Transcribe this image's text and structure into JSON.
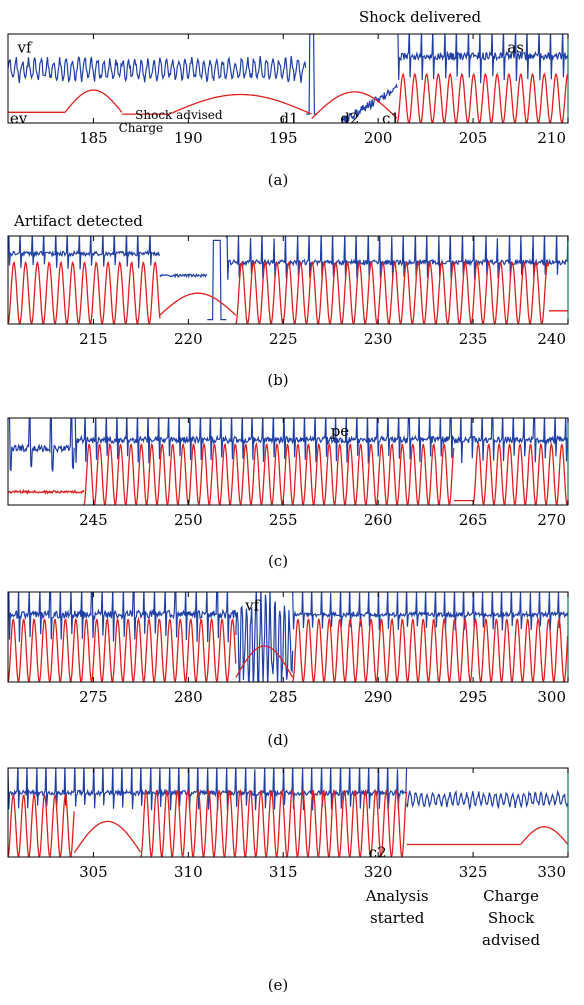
{
  "colors": {
    "ecg": "#1f3fa6",
    "impedance": "#e01f1f",
    "axis": "#000000",
    "right_edge": "#1a7a4a"
  },
  "chart_data": [
    {
      "type": "line",
      "panel": "a",
      "caption": "(a)",
      "title": "Shock delivered",
      "xlim": [
        180.5,
        210
      ],
      "ticks": [
        185,
        190,
        195,
        200,
        205,
        210
      ],
      "tick_labels": [
        "185",
        "190",
        "195",
        "200",
        "205",
        "210"
      ],
      "series": [
        {
          "name": "",
          "color": "ecg",
          "segments": [
            {
              "x_start": 180.5,
              "x_end": 196.2,
              "pattern": "vf",
              "level": 0.6,
              "amp": 0.13,
              "period": 0.33
            },
            {
              "x_start": 196.2,
              "x_end": 196.8,
              "pattern": "spike",
              "level": 1.0,
              "amp": 0.0
            },
            {
              "x_start": 198.0,
              "x_end": 201.0,
              "pattern": "ramp",
              "level": 0.0,
              "level_end": 0.4,
              "amp": 0.1
            },
            {
              "x_start": 201.0,
              "x_end": 210.0,
              "pattern": "spikes",
              "level": 0.75,
              "amp": 0.35,
              "period": 0.62
            }
          ]
        },
        {
          "name": "",
          "color": "impedance",
          "segments": [
            {
              "x_start": 180.5,
              "x_end": 183.5,
              "pattern": "flat",
              "level": 0.12,
              "amp": 0.0
            },
            {
              "x_start": 183.5,
              "x_end": 186.5,
              "pattern": "hump",
              "level": 0.12,
              "amp": 0.25
            },
            {
              "x_start": 186.5,
              "x_end": 189.0,
              "pattern": "flat",
              "level": 0.1,
              "amp": 0.0
            },
            {
              "x_start": 189.0,
              "x_end": 196.5,
              "pattern": "hump",
              "level": 0.1,
              "amp": 0.22
            },
            {
              "x_start": 196.5,
              "x_end": 201.0,
              "pattern": "hump",
              "level": 0.05,
              "amp": 0.3
            },
            {
              "x_start": 201.0,
              "x_end": 210.0,
              "pattern": "pulse",
              "level": 0.0,
              "amp": 0.55,
              "period": 0.62
            }
          ]
        }
      ],
      "annotations": [
        {
          "text": "vf",
          "x": 181.0,
          "y": 0.85
        },
        {
          "text": "as",
          "x": 206.8,
          "y": 0.85
        },
        {
          "text": "ev",
          "x": 180.6,
          "y": 0.05
        },
        {
          "text": "d1",
          "x": 194.8,
          "y": 0.05
        },
        {
          "text": "d2",
          "x": 198.0,
          "y": 0.05
        },
        {
          "text": "c1",
          "x": 200.2,
          "y": 0.05
        }
      ],
      "below_annotations": [
        {
          "text": "Shock advised",
          "x": 189.5,
          "line": 0
        },
        {
          "text": "Charge",
          "x": 187.5,
          "line": 1
        }
      ]
    },
    {
      "type": "line",
      "panel": "b",
      "caption": "(b)",
      "title": "Artifact detected",
      "xlim": [
        210.5,
        240
      ],
      "ticks": [
        215,
        220,
        225,
        230,
        235,
        240
      ],
      "tick_labels": [
        "215",
        "220",
        "225",
        "230",
        "235",
        "240"
      ],
      "series": [
        {
          "name": "",
          "color": "ecg",
          "segments": [
            {
              "x_start": 210.5,
              "x_end": 218.5,
              "pattern": "spikes",
              "level": 0.8,
              "amp": 0.2,
              "period": 0.62
            },
            {
              "x_start": 218.5,
              "x_end": 221.0,
              "pattern": "flat",
              "level": 0.55,
              "amp": 0.03
            },
            {
              "x_start": 221.0,
              "x_end": 222.0,
              "pattern": "spike",
              "level": 0.95,
              "amp": 0.0
            },
            {
              "x_start": 222.0,
              "x_end": 240.0,
              "pattern": "spikes",
              "level": 0.7,
              "amp": 0.22,
              "period": 0.62
            }
          ]
        },
        {
          "name": "",
          "color": "impedance",
          "segments": [
            {
              "x_start": 210.5,
              "x_end": 218.5,
              "pattern": "pulse",
              "level": 0.0,
              "amp": 0.7,
              "period": 0.62
            },
            {
              "x_start": 218.5,
              "x_end": 222.5,
              "pattern": "hump",
              "level": 0.1,
              "amp": 0.25
            },
            {
              "x_start": 222.5,
              "x_end": 239.0,
              "pattern": "pulse",
              "level": 0.0,
              "amp": 0.7,
              "period": 0.62
            },
            {
              "x_start": 239.0,
              "x_end": 240.0,
              "pattern": "flat",
              "level": 0.15,
              "amp": 0.0
            }
          ]
        }
      ],
      "annotations": [],
      "below_annotations": []
    },
    {
      "type": "line",
      "panel": "c",
      "caption": "(c)",
      "title": "",
      "xlim": [
        240.5,
        270
      ],
      "ticks": [
        245,
        250,
        255,
        260,
        265,
        270
      ],
      "tick_labels": [
        "245",
        "250",
        "255",
        "260",
        "265",
        "270"
      ],
      "series": [
        {
          "name": "",
          "color": "ecg",
          "segments": [
            {
              "x_start": 240.5,
              "x_end": 244.0,
              "pattern": "spikes",
              "level": 0.65,
              "amp": 0.3,
              "period": 1.1
            },
            {
              "x_start": 244.0,
              "x_end": 270.0,
              "pattern": "spikes",
              "level": 0.75,
              "amp": 0.3,
              "period": 0.55
            }
          ]
        },
        {
          "name": "",
          "color": "impedance",
          "segments": [
            {
              "x_start": 240.5,
              "x_end": 244.5,
              "pattern": "flat",
              "level": 0.15,
              "amp": 0.03
            },
            {
              "x_start": 244.5,
              "x_end": 264.0,
              "pattern": "pulse",
              "level": 0.0,
              "amp": 0.7,
              "period": 0.55
            },
            {
              "x_start": 264.0,
              "x_end": 265.0,
              "pattern": "flat",
              "level": 0.05,
              "amp": 0.0
            },
            {
              "x_start": 265.0,
              "x_end": 270.0,
              "pattern": "pulse",
              "level": 0.0,
              "amp": 0.7,
              "period": 0.55
            }
          ]
        }
      ],
      "annotations": [
        {
          "text": "pe",
          "x": 257.5,
          "y": 0.85
        }
      ],
      "below_annotations": []
    },
    {
      "type": "line",
      "panel": "d",
      "caption": "(d)",
      "title": "",
      "xlim": [
        270.5,
        300
      ],
      "ticks": [
        275,
        280,
        285,
        290,
        295,
        300
      ],
      "tick_labels": [
        "275",
        "280",
        "285",
        "290",
        "295",
        "300"
      ],
      "series": [
        {
          "name": "",
          "color": "ecg",
          "segments": [
            {
              "x_start": 270.5,
              "x_end": 282.5,
              "pattern": "spikes",
              "level": 0.75,
              "amp": 0.35,
              "period": 0.55
            },
            {
              "x_start": 282.5,
              "x_end": 285.5,
              "pattern": "vf",
              "level": 0.45,
              "amp": 0.55,
              "period": 0.25
            },
            {
              "x_start": 285.5,
              "x_end": 300.0,
              "pattern": "spikes",
              "level": 0.75,
              "amp": 0.2,
              "period": 0.5
            }
          ]
        },
        {
          "name": "",
          "color": "impedance",
          "segments": [
            {
              "x_start": 270.5,
              "x_end": 282.5,
              "pattern": "pulse",
              "level": 0.0,
              "amp": 0.7,
              "period": 0.55
            },
            {
              "x_start": 282.5,
              "x_end": 285.5,
              "pattern": "hump",
              "level": 0.05,
              "amp": 0.35
            },
            {
              "x_start": 285.5,
              "x_end": 300.0,
              "pattern": "pulse",
              "level": 0.0,
              "amp": 0.7,
              "period": 0.55
            }
          ]
        }
      ],
      "annotations": [
        {
          "text": "vf",
          "x": 283.0,
          "y": 0.85
        }
      ],
      "below_annotations": []
    },
    {
      "type": "line",
      "panel": "e",
      "caption": "(e)",
      "title": "",
      "xlim": [
        300.5,
        330
      ],
      "ticks": [
        305,
        310,
        315,
        320,
        325,
        330
      ],
      "tick_labels": [
        "305",
        "310",
        "315",
        "320",
        "325",
        "330"
      ],
      "series": [
        {
          "name": "",
          "color": "ecg",
          "segments": [
            {
              "x_start": 300.5,
              "x_end": 321.5,
              "pattern": "spikes",
              "level": 0.72,
              "amp": 0.22,
              "period": 0.5
            },
            {
              "x_start": 321.5,
              "x_end": 330.0,
              "pattern": "vf",
              "level": 0.65,
              "amp": 0.08,
              "period": 0.3
            }
          ]
        },
        {
          "name": "",
          "color": "impedance",
          "segments": [
            {
              "x_start": 300.5,
              "x_end": 304.0,
              "pattern": "pulse",
              "level": 0.0,
              "amp": 0.7,
              "period": 0.55
            },
            {
              "x_start": 304.0,
              "x_end": 307.5,
              "pattern": "hump",
              "level": 0.05,
              "amp": 0.35
            },
            {
              "x_start": 307.5,
              "x_end": 321.5,
              "pattern": "pulse",
              "level": 0.0,
              "amp": 0.75,
              "period": 0.55
            },
            {
              "x_start": 321.5,
              "x_end": 327.5,
              "pattern": "flat",
              "level": 0.14,
              "amp": 0.0
            },
            {
              "x_start": 327.5,
              "x_end": 330.0,
              "pattern": "hump",
              "level": 0.14,
              "amp": 0.2
            }
          ]
        }
      ],
      "annotations": [
        {
          "text": "c2",
          "x": 319.5,
          "y": 0.05
        }
      ],
      "below_annotations": [
        {
          "text": "Analysis",
          "x": 321.0,
          "line": 0
        },
        {
          "text": "started",
          "x": 321.0,
          "line": 1
        },
        {
          "text": "Charge",
          "x": 327.0,
          "line": 0
        },
        {
          "text": "Shock",
          "x": 327.0,
          "line": 1
        },
        {
          "text": "advised",
          "x": 327.0,
          "line": 2
        }
      ]
    }
  ]
}
